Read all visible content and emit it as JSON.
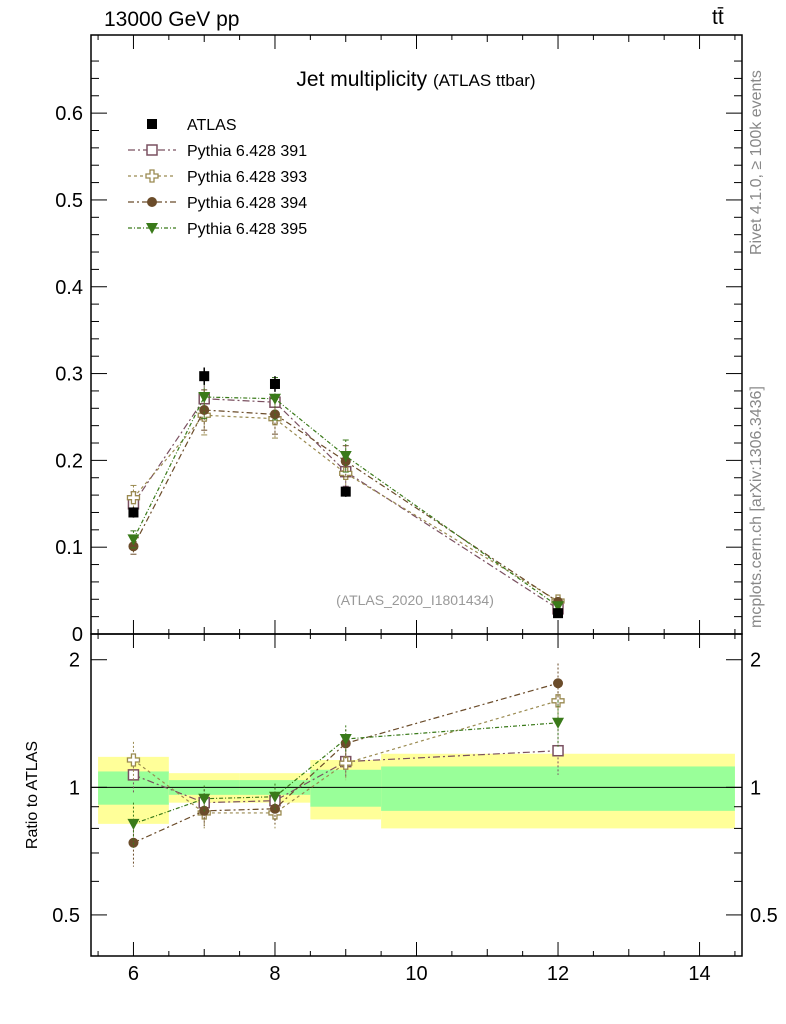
{
  "header": {
    "left_label": "13000 GeV pp",
    "right_label": "tt̄"
  },
  "side_labels": {
    "rivet": "Rivet 4.1.0, ≥ 100k events",
    "mcplots": "mcplots.cern.ch [arXiv:1306.3436]"
  },
  "chart_data": {
    "type": "scatter",
    "title": "Jet multiplicity",
    "subtitle": "(ATLAS ttbar)",
    "analysis_id": "(ATLAS_2020_I1801434)",
    "xlabel": "",
    "ylabel_main": "",
    "ylabel_ratio": "Ratio to ATLAS",
    "xlim": [
      5.4,
      14.6
    ],
    "ylim_main": [
      0,
      0.69
    ],
    "ylim_ratio": [
      0.4,
      2.3
    ],
    "x_ticks": [
      6,
      8,
      10,
      12,
      14
    ],
    "y_ticks_main": [
      {
        "value": 0.6,
        "label": "0.6"
      },
      {
        "value": 0.5,
        "label": "0.5"
      },
      {
        "value": 0.4,
        "label": "0.4"
      },
      {
        "value": 0.3,
        "label": "0.3"
      },
      {
        "value": 0.2,
        "label": "0.2"
      },
      {
        "value": 0.1,
        "label": "0.1"
      },
      {
        "value": 0,
        "label": "0"
      }
    ],
    "y_ticks_ratio": [
      {
        "value": 2,
        "label": "2"
      },
      {
        "value": 1,
        "label": "1"
      },
      {
        "value": 0.5,
        "label": "0.5"
      }
    ],
    "bins": [
      {
        "x": 6,
        "lo": 5.5,
        "hi": 6.5
      },
      {
        "x": 7,
        "lo": 6.5,
        "hi": 7.5
      },
      {
        "x": 8,
        "lo": 7.5,
        "hi": 8.5
      },
      {
        "x": 9,
        "lo": 8.5,
        "hi": 9.5
      },
      {
        "x": 12,
        "lo": 9.5,
        "hi": 14.5
      }
    ],
    "data": {
      "name": "ATLAS",
      "x": [
        6,
        7,
        8,
        9,
        12
      ],
      "y": [
        0.14,
        0.297,
        0.288,
        0.164,
        0.024
      ],
      "err": [
        0.006,
        0.01,
        0.009,
        0.006,
        0.003
      ],
      "band_green": [
        0.09,
        0.04,
        0.04,
        0.1,
        0.12
      ],
      "band_yellow": [
        0.18,
        0.08,
        0.08,
        0.16,
        0.2
      ]
    },
    "series": [
      {
        "name": "Pythia 6.428 391",
        "marker": "open-square",
        "color": "#7a5060",
        "dash": "7,3,2,3",
        "x": [
          6,
          7,
          8,
          9,
          12
        ],
        "y": [
          0.15,
          0.271,
          0.267,
          0.187,
          0.029
        ],
        "ratio": [
          1.07,
          0.92,
          0.93,
          1.15,
          1.22
        ],
        "ratio_err": [
          0.1,
          0.07,
          0.07,
          0.1,
          0.15
        ]
      },
      {
        "name": "Pythia 6.428 393",
        "marker": "open-cross",
        "color": "#9a8a50",
        "dash": "3,3",
        "x": [
          6,
          7,
          8,
          9,
          12
        ],
        "y": [
          0.157,
          0.252,
          0.248,
          0.185,
          0.038
        ],
        "ratio": [
          1.16,
          0.87,
          0.87,
          1.14,
          1.6
        ],
        "ratio_err": [
          0.12,
          0.07,
          0.07,
          0.1,
          0.2
        ]
      },
      {
        "name": "Pythia 6.428 394",
        "marker": "filled-circle",
        "color": "#6b4c2a",
        "dash": "6,3,2,3",
        "x": [
          6,
          7,
          8,
          9,
          12
        ],
        "y": [
          0.101,
          0.258,
          0.253,
          0.199,
          0.037
        ],
        "ratio": [
          0.74,
          0.88,
          0.89,
          1.27,
          1.76
        ],
        "ratio_err": [
          0.09,
          0.07,
          0.07,
          0.1,
          0.2
        ]
      },
      {
        "name": "Pythia 6.428 395",
        "marker": "filled-triangle-down",
        "color": "#3a7a1a",
        "dash": "4,2,1,2",
        "x": [
          6,
          7,
          8,
          9,
          12
        ],
        "y": [
          0.109,
          0.273,
          0.271,
          0.205,
          0.032
        ],
        "ratio": [
          0.82,
          0.94,
          0.95,
          1.3,
          1.42
        ],
        "ratio_err": [
          0.1,
          0.07,
          0.07,
          0.1,
          0.18
        ]
      }
    ],
    "legend_placement": "top-left",
    "colors": {
      "band_green": "#99ff99",
      "band_yellow": "#ffff99",
      "data": "#000000"
    }
  }
}
